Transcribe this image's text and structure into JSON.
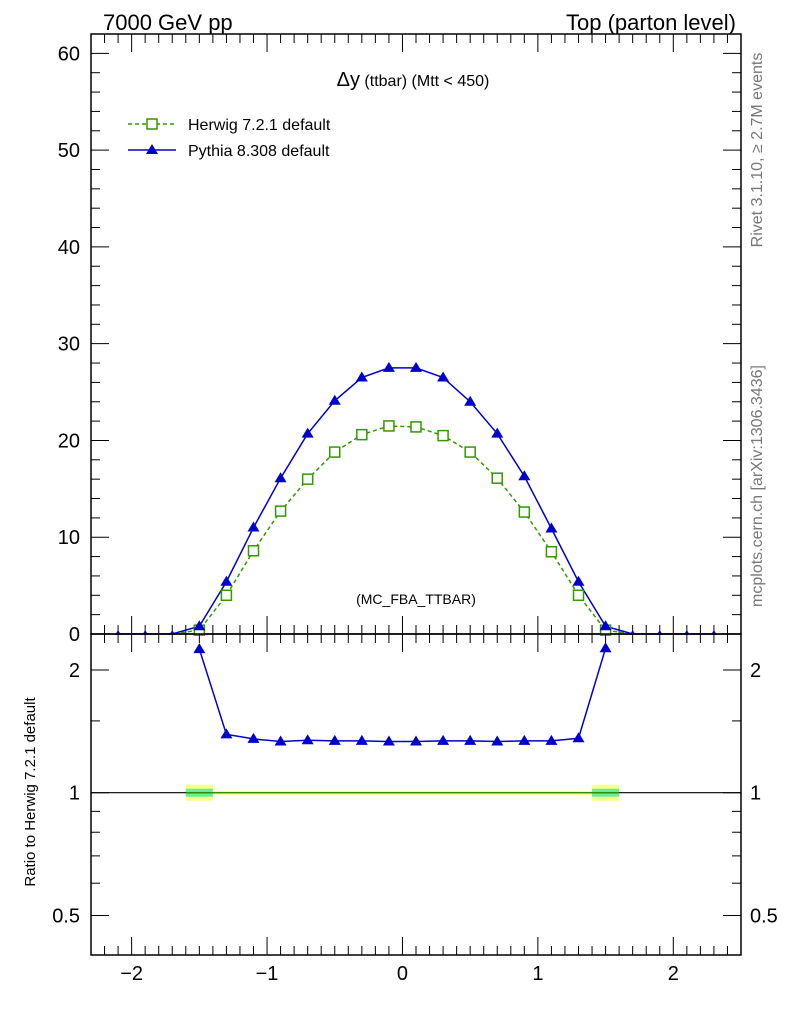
{
  "header": {
    "left": "7000 GeV pp",
    "right": "Top (parton level)"
  },
  "side_text": {
    "rivet": "Rivet 3.1.10, ≥ 2.7M events",
    "mcplots": "mcplots.cern.ch [arXiv:1306.3436]"
  },
  "plot": {
    "title_main": "Δy",
    "title_rest": " (ttbar) (Mtt < 450)",
    "watermark": "(MC_FBA_TTBAR)",
    "ratio_ylabel": "Ratio to Herwig 7.2.1 default"
  },
  "colors": {
    "herwig": "#339900",
    "pythia": "#0000cc",
    "band_inner": "#66ee99",
    "band_outer": "#ffff88"
  },
  "chart_data": [
    {
      "type": "line",
      "xlim": [
        -2.3,
        2.5
      ],
      "ylim": [
        0,
        62
      ],
      "yticks": [
        0,
        10,
        20,
        30,
        40,
        50,
        60
      ],
      "xticks": [
        -2,
        -1,
        0,
        1,
        2
      ],
      "x": [
        -2.1,
        -1.9,
        -1.7,
        -1.5,
        -1.3,
        -1.1,
        -0.9,
        -0.7,
        -0.5,
        -0.3,
        -0.1,
        0.1,
        0.3,
        0.5,
        0.7,
        0.9,
        1.1,
        1.3,
        1.5,
        1.7,
        1.9,
        2.1,
        2.3
      ],
      "series": [
        {
          "name": "Herwig 7.2.1 default",
          "marker": "open-square",
          "dashed": true,
          "values": [
            0,
            0,
            0,
            0.4,
            4.0,
            8.6,
            12.7,
            16.0,
            18.8,
            20.6,
            21.5,
            21.4,
            20.5,
            18.8,
            16.1,
            12.6,
            8.5,
            4.0,
            0.4,
            0,
            0,
            0,
            0
          ]
        },
        {
          "name": "Pythia 8.308 default",
          "marker": "filled-triangle",
          "dashed": false,
          "values": [
            0,
            0,
            0,
            0.8,
            5.4,
            11.0,
            16.1,
            20.7,
            24.1,
            26.5,
            27.5,
            27.5,
            26.5,
            24.0,
            20.7,
            16.3,
            10.9,
            5.4,
            0.8,
            0,
            0,
            0,
            0
          ]
        }
      ]
    },
    {
      "type": "line",
      "scale": "log",
      "ylabel": "Ratio to Herwig 7.2.1 default",
      "ylim": [
        0.4,
        2.45
      ],
      "yticks": [
        0.5,
        1,
        2
      ],
      "ytick_labels": [
        "0.5",
        "1",
        "2"
      ],
      "x": [
        -1.5,
        -1.3,
        -1.1,
        -0.9,
        -0.7,
        -0.5,
        -0.3,
        -0.1,
        0.1,
        0.3,
        0.5,
        0.7,
        0.9,
        1.1,
        1.3,
        1.5
      ],
      "series": [
        {
          "name": "Pythia 8.308 default",
          "values": [
            2.25,
            1.39,
            1.355,
            1.335,
            1.345,
            1.34,
            1.34,
            1.335,
            1.335,
            1.34,
            1.34,
            1.335,
            1.34,
            1.34,
            1.36,
            2.26
          ]
        }
      ],
      "reference": 1
    }
  ]
}
